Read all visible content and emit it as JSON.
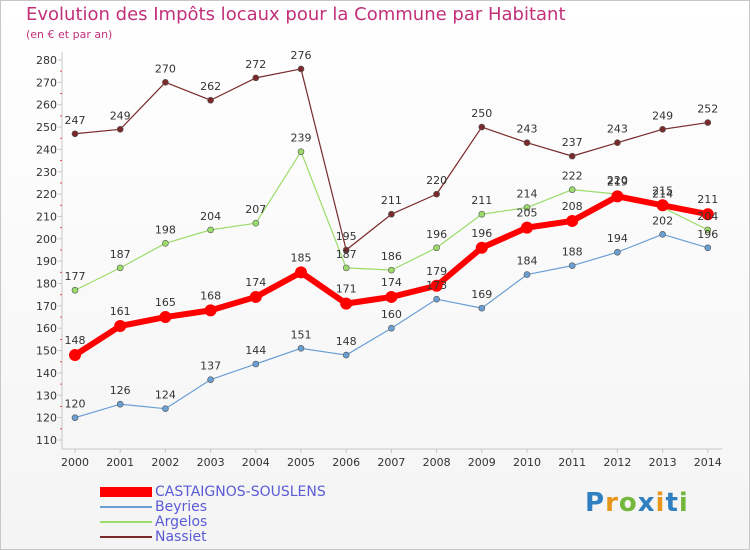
{
  "chart_data": {
    "type": "line",
    "title": "Evolution des Impôts locaux pour la Commune par Habitant",
    "subtitle": "(en € et par an)",
    "x": [
      "2000",
      "2001",
      "2002",
      "2003",
      "2004",
      "2005",
      "2006",
      "2007",
      "2008",
      "2009",
      "2010",
      "2011",
      "2012",
      "2013",
      "2014"
    ],
    "ylim": [
      110,
      280
    ],
    "yticks": [
      110,
      120,
      130,
      140,
      150,
      160,
      170,
      180,
      190,
      200,
      210,
      220,
      230,
      240,
      250,
      260,
      270,
      280
    ],
    "grid": false,
    "legend_position": "bottom-left",
    "series": [
      {
        "name": "CASTAIGNOS-SOUSLENS",
        "color": "#ff0000",
        "values": [
          148,
          161,
          165,
          168,
          174,
          185,
          171,
          174,
          179,
          196,
          205,
          208,
          219,
          215,
          211
        ],
        "labels": [
          "148",
          "161",
          "165",
          "168",
          "174",
          "185",
          "171",
          "174",
          "179",
          "196",
          "205",
          "208",
          "219",
          "215",
          "211"
        ]
      },
      {
        "name": "Beyries",
        "color": "#6a9fd4",
        "values": [
          120,
          126,
          124,
          137,
          144,
          151,
          148,
          160,
          173,
          169,
          184,
          188,
          194,
          202,
          196
        ],
        "labels": [
          "120",
          "126",
          "124",
          "137",
          "144",
          "151",
          "148",
          "160",
          "173",
          "169",
          "184",
          "188",
          "194",
          "202",
          "196"
        ]
      },
      {
        "name": "Argelos",
        "color": "#9bdc6a",
        "values": [
          177,
          187,
          198,
          204,
          207,
          239,
          187,
          186,
          196,
          211,
          214,
          222,
          220,
          214,
          204
        ],
        "labels": [
          "177",
          "187",
          "198",
          "204",
          "207",
          "239",
          "187",
          "186",
          "196",
          "211",
          "214",
          "222",
          "220",
          "214",
          "204"
        ]
      },
      {
        "name": "Nassiet",
        "color": "#7a2a2a",
        "values": [
          247,
          249,
          270,
          262,
          272,
          276,
          195,
          211,
          220,
          250,
          243,
          237,
          243,
          249,
          252
        ],
        "labels": [
          "247",
          "249",
          "270",
          "262",
          "272",
          "276",
          "195",
          "211",
          "220",
          "250",
          "243",
          "237",
          "243",
          "249",
          "252"
        ]
      }
    ]
  },
  "logo": {
    "p": "P",
    "r": "r",
    "o": "o",
    "x": "x",
    "i": "i",
    "t": "t",
    "i2": "i"
  }
}
